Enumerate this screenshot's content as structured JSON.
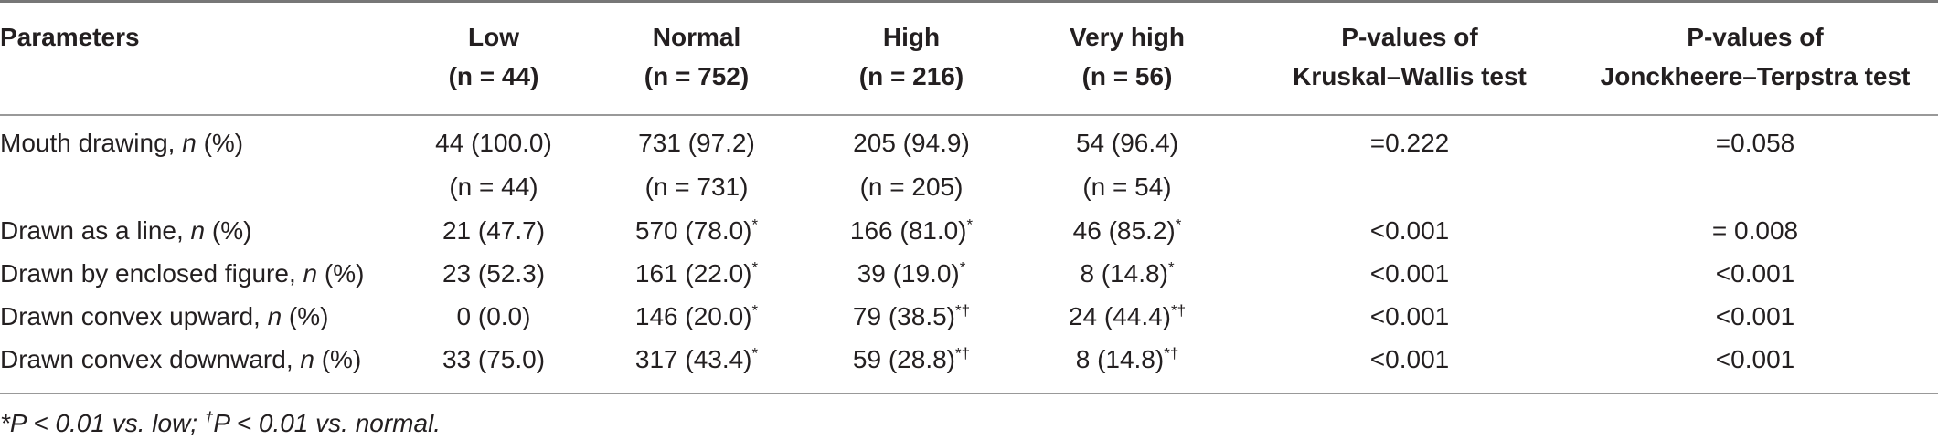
{
  "headers": {
    "parameters": "Parameters",
    "low": "Low",
    "low_n": "(n = 44)",
    "normal": "Normal",
    "normal_n": "(n = 752)",
    "high": "High",
    "high_n": "(n = 216)",
    "very_high": "Very high",
    "very_high_n": "(n = 56)",
    "kw_line1": "P-values of",
    "kw_line2": "Kruskal–Wallis test",
    "jt_line1": "P-values of",
    "jt_line2": "Jonckheere–Terpstra test"
  },
  "rows": [
    {
      "label": "Mouth drawing, ",
      "label_n": "n",
      "label_pct": " (%)",
      "low": "44 (100.0)",
      "low_sup": "",
      "normal": "731 (97.2)",
      "normal_sup": "",
      "high": "205 (94.9)",
      "high_sup": "",
      "very_high": "54 (96.4)",
      "very_high_sup": "",
      "kw": "=0.222",
      "jt": "=0.058"
    },
    {
      "label": "",
      "label_n": "",
      "label_pct": "",
      "low": "(n = 44)",
      "low_sup": "",
      "normal": "(n = 731)",
      "normal_sup": "",
      "high": "(n = 205)",
      "high_sup": "",
      "very_high": "(n = 54)",
      "very_high_sup": "",
      "kw": "",
      "jt": ""
    },
    {
      "label": "Drawn as a line, ",
      "label_n": "n",
      "label_pct": " (%)",
      "low": "21 (47.7)",
      "low_sup": "",
      "normal": "570 (78.0)",
      "normal_sup": "*",
      "high": "166 (81.0)",
      "high_sup": "*",
      "very_high": "46 (85.2)",
      "very_high_sup": "*",
      "kw": "<0.001",
      "jt": "= 0.008"
    },
    {
      "label": "Drawn by enclosed figure, ",
      "label_n": "n",
      "label_pct": " (%)",
      "low": "23 (52.3)",
      "low_sup": "",
      "normal": "161 (22.0)",
      "normal_sup": "*",
      "high": "39 (19.0)",
      "high_sup": "*",
      "very_high": "8 (14.8)",
      "very_high_sup": "*",
      "kw": "<0.001",
      "jt": "<0.001"
    },
    {
      "label": "Drawn convex upward, ",
      "label_n": "n",
      "label_pct": " (%)",
      "low": "0 (0.0)",
      "low_sup": "",
      "normal": "146 (20.0)",
      "normal_sup": "*",
      "high": "79 (38.5)",
      "high_sup": "*†",
      "very_high": "24 (44.4)",
      "very_high_sup": "*†",
      "kw": "<0.001",
      "jt": "<0.001"
    },
    {
      "label": "Drawn convex downward, ",
      "label_n": "n",
      "label_pct": " (%)",
      "low": "33 (75.0)",
      "low_sup": "",
      "normal": "317 (43.4)",
      "normal_sup": "*",
      "high": "59 (28.8)",
      "high_sup": "*†",
      "very_high": "8 (14.8)",
      "very_high_sup": "*†",
      "kw": "<0.001",
      "jt": "<0.001"
    }
  ],
  "footnote": {
    "part1": "*P < 0.01 vs. low; ",
    "dagger": "†",
    "part2": "P < 0.01 vs. normal."
  }
}
